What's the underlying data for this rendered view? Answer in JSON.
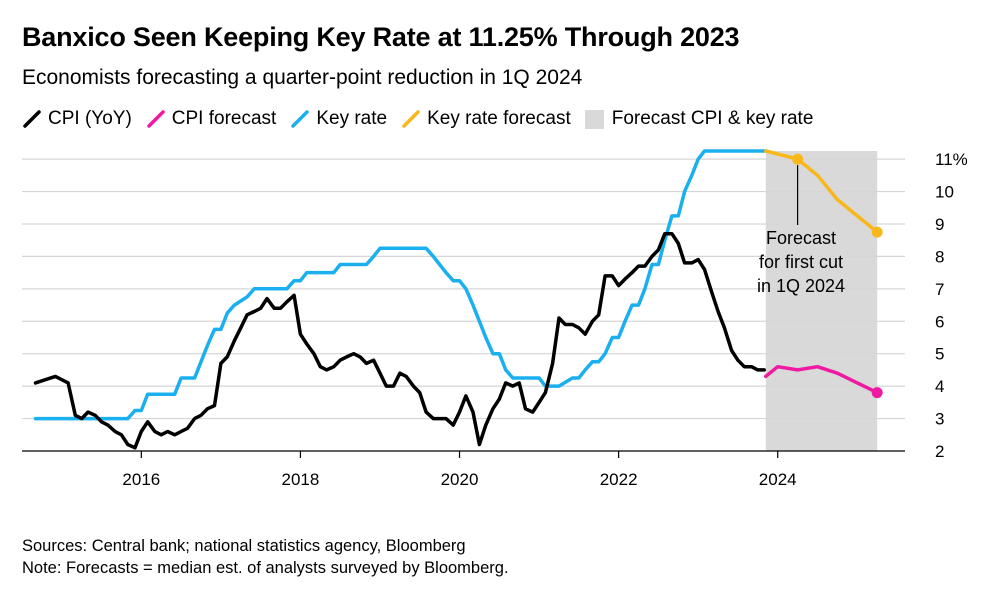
{
  "header": {
    "title": "Banxico Seen Keeping Key Rate at 11.25% Through 2023",
    "subtitle": "Economists forecasting a quarter-point reduction in 1Q 2024"
  },
  "legend": {
    "items": [
      {
        "label": "CPI (YoY)",
        "color": "#000000",
        "kind": "line"
      },
      {
        "label": "CPI forecast",
        "color": "#ef1aa1",
        "kind": "line"
      },
      {
        "label": "Key rate",
        "color": "#1ab0ef",
        "kind": "line"
      },
      {
        "label": "Key rate forecast",
        "color": "#f9b71a",
        "kind": "line"
      },
      {
        "label": "Forecast CPI & key rate",
        "color": "#d9d9d9",
        "kind": "box"
      }
    ]
  },
  "annotation": {
    "lines": [
      "Forecast",
      "for first cut",
      "in 1Q 2024"
    ]
  },
  "footer": {
    "sources": "Sources: Central bank; national statistics agency, Bloomberg",
    "note": "Note: Forecasts = median est. of analysts surveyed by Bloomberg."
  },
  "chart_data": {
    "type": "line",
    "title": "Banxico Seen Keeping Key Rate at 11.25% Through 2023",
    "subtitle": "Economists forecasting a quarter-point reduction in 1Q 2024",
    "xlim": [
      2014.5,
      2025.6
    ],
    "ylim": [
      2,
      11.25
    ],
    "x_ticks": [
      2016,
      2018,
      2020,
      2022,
      2024
    ],
    "x_tick_labels": [
      "2016",
      "2018",
      "2020",
      "2022",
      "2024"
    ],
    "y_ticks": [
      2,
      3,
      4,
      5,
      6,
      7,
      8,
      9,
      10,
      11
    ],
    "y_tick_labels": [
      "2",
      "3",
      "4",
      "5",
      "6",
      "7",
      "8",
      "9",
      "10",
      "11%"
    ],
    "y_axis_side": "right",
    "grid": true,
    "legend_position": "top",
    "shaded_region": {
      "x": [
        2023.85,
        2025.25
      ],
      "label": "Forecast CPI & key rate",
      "color": "#d9d9d9"
    },
    "series": [
      {
        "name": "CPI (YoY)",
        "color": "#000000",
        "x": [
          2014.67,
          2014.92,
          2015.08,
          2015.17,
          2015.25,
          2015.33,
          2015.42,
          2015.5,
          2015.58,
          2015.67,
          2015.75,
          2015.83,
          2015.92,
          2016.0,
          2016.08,
          2016.17,
          2016.25,
          2016.33,
          2016.42,
          2016.5,
          2016.58,
          2016.67,
          2016.75,
          2016.83,
          2016.92,
          2017.0,
          2017.08,
          2017.17,
          2017.25,
          2017.33,
          2017.42,
          2017.5,
          2017.58,
          2017.67,
          2017.75,
          2017.83,
          2017.92,
          2018.0,
          2018.08,
          2018.17,
          2018.25,
          2018.33,
          2018.42,
          2018.5,
          2018.58,
          2018.67,
          2018.75,
          2018.83,
          2018.92,
          2019.0,
          2019.08,
          2019.17,
          2019.25,
          2019.33,
          2019.42,
          2019.5,
          2019.58,
          2019.67,
          2019.75,
          2019.83,
          2019.92,
          2020.0,
          2020.08,
          2020.17,
          2020.25,
          2020.33,
          2020.42,
          2020.5,
          2020.58,
          2020.67,
          2020.75,
          2020.83,
          2020.92,
          2021.0,
          2021.08,
          2021.17,
          2021.25,
          2021.33,
          2021.42,
          2021.5,
          2021.58,
          2021.67,
          2021.75,
          2021.83,
          2021.92,
          2022.0,
          2022.08,
          2022.17,
          2022.25,
          2022.33,
          2022.42,
          2022.5,
          2022.58,
          2022.67,
          2022.75,
          2022.83,
          2022.92,
          2023.0,
          2023.08,
          2023.17,
          2023.25,
          2023.33,
          2023.42,
          2023.5,
          2023.58,
          2023.67,
          2023.75,
          2023.83
        ],
        "y": [
          4.1,
          4.3,
          4.1,
          3.1,
          3.0,
          3.2,
          3.1,
          2.9,
          2.8,
          2.6,
          2.5,
          2.2,
          2.1,
          2.6,
          2.9,
          2.6,
          2.5,
          2.6,
          2.5,
          2.6,
          2.7,
          3.0,
          3.1,
          3.3,
          3.4,
          4.7,
          4.9,
          5.4,
          5.8,
          6.2,
          6.3,
          6.4,
          6.7,
          6.4,
          6.4,
          6.6,
          6.8,
          5.6,
          5.3,
          5.0,
          4.6,
          4.5,
          4.6,
          4.8,
          4.9,
          5.0,
          4.9,
          4.7,
          4.8,
          4.4,
          4.0,
          4.0,
          4.4,
          4.3,
          4.0,
          3.8,
          3.2,
          3.0,
          3.0,
          3.0,
          2.8,
          3.2,
          3.7,
          3.2,
          2.2,
          2.8,
          3.3,
          3.6,
          4.1,
          4.0,
          4.1,
          3.3,
          3.2,
          3.5,
          3.8,
          4.7,
          6.1,
          5.9,
          5.9,
          5.8,
          5.6,
          6.0,
          6.2,
          7.4,
          7.4,
          7.1,
          7.3,
          7.5,
          7.7,
          7.7,
          8.0,
          8.2,
          8.7,
          8.7,
          8.4,
          7.8,
          7.8,
          7.9,
          7.6,
          6.9,
          6.3,
          5.8,
          5.1,
          4.8,
          4.6,
          4.6,
          4.5,
          4.5
        ]
      },
      {
        "name": "CPI forecast",
        "color": "#ef1aa1",
        "x": [
          2023.85,
          2024.0,
          2024.25,
          2024.5,
          2024.75,
          2025.0,
          2025.25
        ],
        "y": [
          4.3,
          4.6,
          4.5,
          4.6,
          4.4,
          4.1,
          3.8
        ]
      },
      {
        "name": "Key rate",
        "color": "#1ab0ef",
        "x": [
          2014.67,
          2014.92,
          2015.17,
          2015.42,
          2015.67,
          2015.83,
          2015.92,
          2016.0,
          2016.08,
          2016.17,
          2016.42,
          2016.5,
          2016.58,
          2016.67,
          2016.75,
          2016.83,
          2016.92,
          2017.0,
          2017.08,
          2017.17,
          2017.33,
          2017.42,
          2017.5,
          2017.67,
          2017.83,
          2017.92,
          2018.0,
          2018.08,
          2018.17,
          2018.42,
          2018.5,
          2018.83,
          2018.92,
          2019.0,
          2019.08,
          2019.58,
          2019.67,
          2019.75,
          2019.83,
          2019.92,
          2020.0,
          2020.08,
          2020.17,
          2020.25,
          2020.33,
          2020.42,
          2020.5,
          2020.58,
          2020.67,
          2020.75,
          2020.83,
          2021.0,
          2021.08,
          2021.17,
          2021.25,
          2021.42,
          2021.5,
          2021.58,
          2021.67,
          2021.75,
          2021.83,
          2021.92,
          2022.0,
          2022.08,
          2022.17,
          2022.25,
          2022.33,
          2022.42,
          2022.5,
          2022.58,
          2022.67,
          2022.75,
          2022.83,
          2022.92,
          2023.0,
          2023.08,
          2023.17,
          2023.25,
          2023.42,
          2023.58,
          2023.75,
          2023.85
        ],
        "y": [
          3.0,
          3.0,
          3.0,
          3.0,
          3.0,
          3.0,
          3.25,
          3.25,
          3.75,
          3.75,
          3.75,
          4.25,
          4.25,
          4.25,
          4.75,
          5.25,
          5.75,
          5.75,
          6.25,
          6.5,
          6.75,
          7.0,
          7.0,
          7.0,
          7.0,
          7.25,
          7.25,
          7.5,
          7.5,
          7.5,
          7.75,
          7.75,
          8.0,
          8.25,
          8.25,
          8.25,
          8.0,
          7.75,
          7.5,
          7.25,
          7.25,
          7.0,
          6.5,
          6.0,
          5.5,
          5.0,
          5.0,
          4.5,
          4.25,
          4.25,
          4.25,
          4.25,
          4.0,
          4.0,
          4.0,
          4.25,
          4.25,
          4.5,
          4.75,
          4.75,
          5.0,
          5.5,
          5.5,
          6.0,
          6.5,
          6.5,
          7.0,
          7.75,
          7.75,
          8.5,
          9.25,
          9.25,
          10.0,
          10.5,
          11.0,
          11.25,
          11.25,
          11.25,
          11.25,
          11.25,
          11.25,
          11.25
        ]
      },
      {
        "name": "Key rate forecast",
        "color": "#f9b71a",
        "x": [
          2023.85,
          2024.25,
          2024.5,
          2024.75,
          2025.0,
          2025.25
        ],
        "y": [
          11.25,
          11.0,
          10.5,
          9.75,
          9.25,
          8.75
        ]
      }
    ],
    "annotations": [
      {
        "text": "Forecast for first cut in 1Q 2024",
        "x": 2024.25,
        "y": 11.0
      }
    ]
  }
}
